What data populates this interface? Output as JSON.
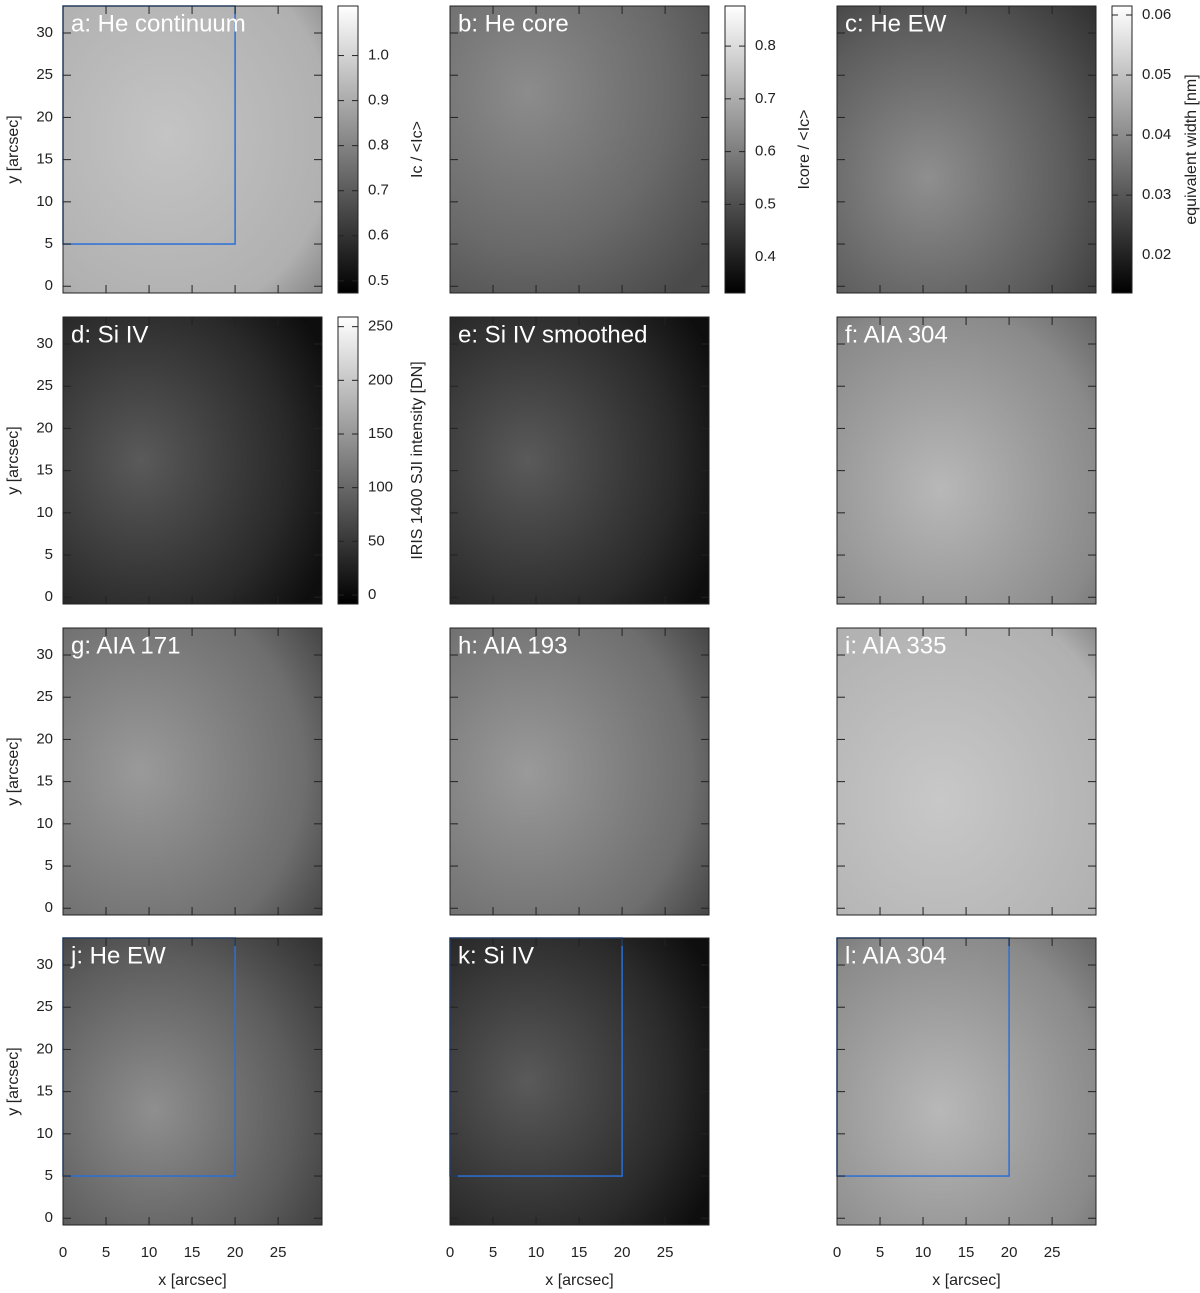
{
  "chart_data": [
    {
      "type": "image",
      "title": "a: He continuum",
      "xlim": [
        0,
        30.1
      ],
      "ylim": [
        -0.8,
        33.2
      ],
      "xticks": [
        0,
        5,
        10,
        15,
        20,
        25
      ],
      "yticks": [
        0,
        5,
        10,
        15,
        20,
        25,
        30
      ],
      "show_xtick_labels": false,
      "show_ytick_labels": true,
      "ylabel": "y [arcsec]",
      "box": [
        0,
        5,
        20,
        33.2
      ],
      "colorbar": {
        "label": "Ic / <Ic>",
        "clim": [
          0.473,
          1.11
        ],
        "ticks": [
          0.5,
          0.6,
          0.7,
          0.8,
          0.9,
          {
            "value": 1,
            "label": "1.0"
          }
        ]
      }
    },
    {
      "type": "image",
      "title": "b: He core",
      "xlim": [
        0,
        30.1
      ],
      "ylim": [
        -0.8,
        33.2
      ],
      "xticks": [
        0,
        5,
        10,
        15,
        20,
        25
      ],
      "yticks": [
        0,
        5,
        10,
        15,
        20,
        25,
        30
      ],
      "show_xtick_labels": false,
      "show_ytick_labels": false,
      "colorbar": {
        "label": "Icore / <Ic>",
        "clim": [
          0.332,
          0.876
        ],
        "ticks": [
          0.4,
          0.5,
          0.6,
          0.7,
          0.8
        ]
      }
    },
    {
      "type": "image",
      "title": "c: He EW",
      "xlim": [
        0,
        30.1
      ],
      "ylim": [
        -0.8,
        33.2
      ],
      "xticks": [
        0,
        5,
        10,
        15,
        20,
        25
      ],
      "yticks": [
        0,
        5,
        10,
        15,
        20,
        25,
        30
      ],
      "show_xtick_labels": false,
      "show_ytick_labels": false,
      "colorbar": {
        "label": "equivalent width [nm]",
        "clim": [
          0.0137,
          0.0615
        ],
        "ticks": [
          0.02,
          0.03,
          0.04,
          0.05,
          0.06
        ]
      }
    },
    {
      "type": "image",
      "title": "d: Si IV",
      "xlim": [
        0,
        30.1
      ],
      "ylim": [
        -0.8,
        33.2
      ],
      "xticks": [
        0,
        5,
        10,
        15,
        20,
        25
      ],
      "yticks": [
        0,
        5,
        10,
        15,
        20,
        25,
        30
      ],
      "show_xtick_labels": false,
      "show_ytick_labels": true,
      "ylabel": "y [arcsec]",
      "colorbar": {
        "label": "IRIS 1400 SJI intensity [DN]",
        "clim": [
          -8.4,
          259
        ],
        "ticks": [
          0,
          50,
          100,
          150,
          200,
          250
        ]
      }
    },
    {
      "type": "image",
      "title": "e: Si IV smoothed",
      "xlim": [
        0,
        30.1
      ],
      "ylim": [
        -0.8,
        33.2
      ],
      "xticks": [
        0,
        5,
        10,
        15,
        20,
        25
      ],
      "yticks": [
        0,
        5,
        10,
        15,
        20,
        25,
        30
      ],
      "show_xtick_labels": false,
      "show_ytick_labels": false
    },
    {
      "type": "image",
      "title": "f: AIA 304",
      "xlim": [
        0,
        30.1
      ],
      "ylim": [
        -0.8,
        33.2
      ],
      "xticks": [
        0,
        5,
        10,
        15,
        20,
        25
      ],
      "yticks": [
        0,
        5,
        10,
        15,
        20,
        25,
        30
      ],
      "show_xtick_labels": false,
      "show_ytick_labels": false
    },
    {
      "type": "image",
      "title": "g: AIA 171",
      "xlim": [
        0,
        30.1
      ],
      "ylim": [
        -0.8,
        33.2
      ],
      "xticks": [
        0,
        5,
        10,
        15,
        20,
        25
      ],
      "yticks": [
        0,
        5,
        10,
        15,
        20,
        25,
        30
      ],
      "show_xtick_labels": false,
      "show_ytick_labels": true,
      "ylabel": "y [arcsec]"
    },
    {
      "type": "image",
      "title": "h: AIA 193",
      "xlim": [
        0,
        30.1
      ],
      "ylim": [
        -0.8,
        33.2
      ],
      "xticks": [
        0,
        5,
        10,
        15,
        20,
        25
      ],
      "yticks": [
        0,
        5,
        10,
        15,
        20,
        25,
        30
      ],
      "show_xtick_labels": false,
      "show_ytick_labels": false
    },
    {
      "type": "image",
      "title": "i: AIA 335",
      "xlim": [
        0,
        30.1
      ],
      "ylim": [
        -0.8,
        33.2
      ],
      "xticks": [
        0,
        5,
        10,
        15,
        20,
        25
      ],
      "yticks": [
        0,
        5,
        10,
        15,
        20,
        25,
        30
      ],
      "show_xtick_labels": false,
      "show_ytick_labels": false
    },
    {
      "type": "image",
      "title": "j: He EW",
      "xlim": [
        0,
        30.1
      ],
      "ylim": [
        -0.8,
        33.2
      ],
      "xticks": [
        0,
        5,
        10,
        15,
        20,
        25
      ],
      "yticks": [
        0,
        5,
        10,
        15,
        20,
        25,
        30
      ],
      "show_xtick_labels": true,
      "show_ytick_labels": true,
      "xlabel": "x [arcsec]",
      "ylabel": "y [arcsec]",
      "box": [
        0,
        5,
        20,
        33.2
      ]
    },
    {
      "type": "image",
      "title": "k: Si IV",
      "xlim": [
        0,
        30.1
      ],
      "ylim": [
        -0.8,
        33.2
      ],
      "xticks": [
        0,
        5,
        10,
        15,
        20,
        25
      ],
      "yticks": [
        0,
        5,
        10,
        15,
        20,
        25,
        30
      ],
      "show_xtick_labels": true,
      "show_ytick_labels": false,
      "xlabel": "x [arcsec]",
      "box": [
        0,
        5,
        20,
        33.2
      ]
    },
    {
      "type": "image",
      "title": "l: AIA 304",
      "xlim": [
        0,
        30.1
      ],
      "ylim": [
        -0.8,
        33.2
      ],
      "xticks": [
        0,
        5,
        10,
        15,
        20,
        25
      ],
      "yticks": [
        0,
        5,
        10,
        15,
        20,
        25,
        30
      ],
      "show_xtick_labels": true,
      "show_ytick_labels": false,
      "xlabel": "x [arcsec]",
      "box": [
        0,
        5,
        20,
        33.2
      ]
    }
  ]
}
